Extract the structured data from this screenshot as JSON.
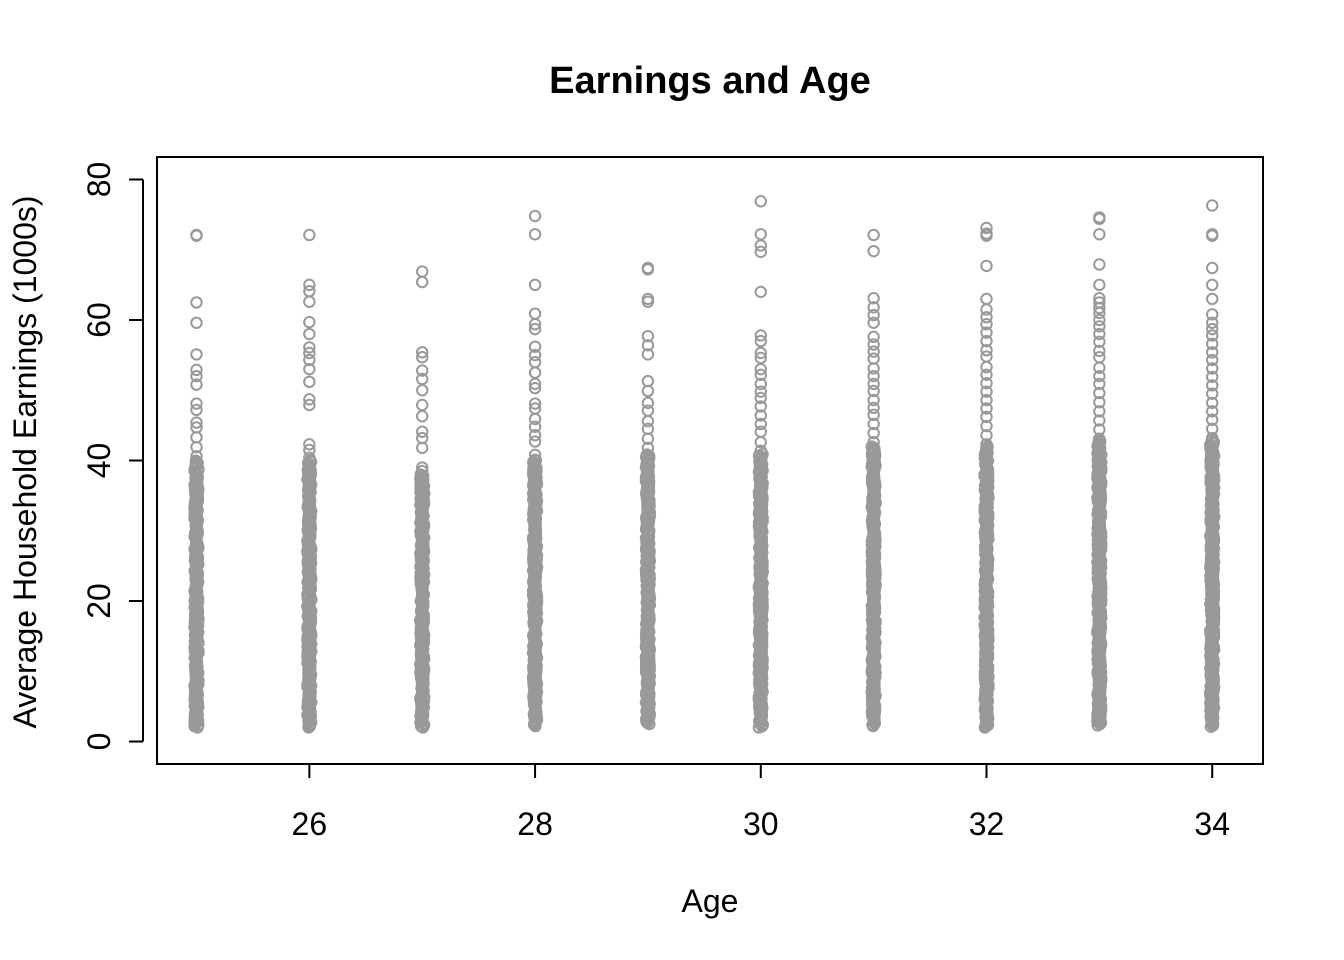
{
  "chart_data": {
    "type": "scatter",
    "title": "Earnings and Age",
    "xlabel": "Age",
    "ylabel": "Average Household Earnings (1000s)",
    "xlim": [
      24.65,
      34.45
    ],
    "ylim": [
      -3.2,
      83.2
    ],
    "x_ticks": [
      26,
      28,
      30,
      32,
      34
    ],
    "y_ticks": [
      0,
      20,
      40,
      60,
      80
    ],
    "point_color": "#999999",
    "grid": false,
    "legend": "none",
    "points": [
      {
        "x": 25,
        "y": 72.1
      },
      {
        "x": 25,
        "y": 72.0
      },
      {
        "x": 25,
        "y": 62.5
      },
      {
        "x": 25,
        "y": 59.6
      },
      {
        "x": 25,
        "y": 55.1
      },
      {
        "x": 25,
        "y": 52.9
      },
      {
        "x": 25,
        "y": 52.0
      },
      {
        "x": 25,
        "y": 50.8
      },
      {
        "x": 25,
        "y": 48.1
      },
      {
        "x": 25,
        "y": 47.2
      },
      {
        "x": 25,
        "y": 45.4
      },
      {
        "x": 25,
        "y": 44.7
      },
      {
        "x": 25,
        "y": 43.3
      },
      {
        "x": 25,
        "y": 41.9
      },
      {
        "x": 25,
        "y": 40.6
      },
      {
        "x": 26,
        "y": 72.1
      },
      {
        "x": 26,
        "y": 65.0
      },
      {
        "x": 26,
        "y": 64.1
      },
      {
        "x": 26,
        "y": 62.6
      },
      {
        "x": 26,
        "y": 59.7
      },
      {
        "x": 26,
        "y": 58.0
      },
      {
        "x": 26,
        "y": 56.1
      },
      {
        "x": 26,
        "y": 55.3
      },
      {
        "x": 26,
        "y": 54.3
      },
      {
        "x": 26,
        "y": 53.0
      },
      {
        "x": 26,
        "y": 51.2
      },
      {
        "x": 26,
        "y": 48.7
      },
      {
        "x": 26,
        "y": 47.9
      },
      {
        "x": 26,
        "y": 42.3
      },
      {
        "x": 26,
        "y": 41.5
      },
      {
        "x": 26,
        "y": 40.4
      },
      {
        "x": 27,
        "y": 66.9
      },
      {
        "x": 27,
        "y": 65.4
      },
      {
        "x": 27,
        "y": 55.4
      },
      {
        "x": 27,
        "y": 54.7
      },
      {
        "x": 27,
        "y": 52.8
      },
      {
        "x": 27,
        "y": 51.6
      },
      {
        "x": 27,
        "y": 50.0
      },
      {
        "x": 27,
        "y": 47.9
      },
      {
        "x": 27,
        "y": 46.3
      },
      {
        "x": 27,
        "y": 44.1
      },
      {
        "x": 27,
        "y": 43.2
      },
      {
        "x": 27,
        "y": 41.8
      },
      {
        "x": 27,
        "y": 39.0
      },
      {
        "x": 27,
        "y": 38.5
      },
      {
        "x": 28,
        "y": 74.8
      },
      {
        "x": 28,
        "y": 72.2
      },
      {
        "x": 28,
        "y": 65.0
      },
      {
        "x": 28,
        "y": 60.9
      },
      {
        "x": 28,
        "y": 59.4
      },
      {
        "x": 28,
        "y": 58.7
      },
      {
        "x": 28,
        "y": 56.2
      },
      {
        "x": 28,
        "y": 55.0
      },
      {
        "x": 28,
        "y": 54.0
      },
      {
        "x": 28,
        "y": 52.5
      },
      {
        "x": 28,
        "y": 50.9
      },
      {
        "x": 28,
        "y": 50.3
      },
      {
        "x": 28,
        "y": 48.1
      },
      {
        "x": 28,
        "y": 47.4
      },
      {
        "x": 28,
        "y": 45.9
      },
      {
        "x": 28,
        "y": 44.8
      },
      {
        "x": 28,
        "y": 43.6
      },
      {
        "x": 28,
        "y": 42.7
      },
      {
        "x": 28,
        "y": 40.8
      },
      {
        "x": 28,
        "y": 40.1
      },
      {
        "x": 29,
        "y": 67.4
      },
      {
        "x": 29,
        "y": 67.2
      },
      {
        "x": 29,
        "y": 63.0
      },
      {
        "x": 29,
        "y": 62.6
      },
      {
        "x": 29,
        "y": 57.7
      },
      {
        "x": 29,
        "y": 56.4
      },
      {
        "x": 29,
        "y": 55.1
      },
      {
        "x": 29,
        "y": 51.3
      },
      {
        "x": 29,
        "y": 49.9
      },
      {
        "x": 29,
        "y": 48.2
      },
      {
        "x": 29,
        "y": 47.1
      },
      {
        "x": 29,
        "y": 45.6
      },
      {
        "x": 29,
        "y": 44.5
      },
      {
        "x": 29,
        "y": 43.1
      },
      {
        "x": 29,
        "y": 41.8
      },
      {
        "x": 30,
        "y": 76.9
      },
      {
        "x": 30,
        "y": 72.2
      },
      {
        "x": 30,
        "y": 70.6
      },
      {
        "x": 30,
        "y": 69.7
      },
      {
        "x": 30,
        "y": 64.0
      },
      {
        "x": 30,
        "y": 57.8
      },
      {
        "x": 30,
        "y": 57.0
      },
      {
        "x": 30,
        "y": 55.3
      },
      {
        "x": 30,
        "y": 54.6
      },
      {
        "x": 30,
        "y": 53.0
      },
      {
        "x": 30,
        "y": 52.2
      },
      {
        "x": 30,
        "y": 50.9
      },
      {
        "x": 30,
        "y": 49.8
      },
      {
        "x": 30,
        "y": 48.9
      },
      {
        "x": 30,
        "y": 47.7
      },
      {
        "x": 30,
        "y": 46.4
      },
      {
        "x": 30,
        "y": 45.2
      },
      {
        "x": 30,
        "y": 44.1
      },
      {
        "x": 30,
        "y": 42.6
      },
      {
        "x": 30,
        "y": 41.4
      },
      {
        "x": 31,
        "y": 72.1
      },
      {
        "x": 31,
        "y": 69.8
      },
      {
        "x": 31,
        "y": 63.1
      },
      {
        "x": 31,
        "y": 61.8
      },
      {
        "x": 31,
        "y": 60.7
      },
      {
        "x": 31,
        "y": 59.6
      },
      {
        "x": 31,
        "y": 57.6
      },
      {
        "x": 31,
        "y": 56.5
      },
      {
        "x": 31,
        "y": 55.5
      },
      {
        "x": 31,
        "y": 54.5
      },
      {
        "x": 31,
        "y": 53.1
      },
      {
        "x": 31,
        "y": 52.0
      },
      {
        "x": 31,
        "y": 50.9
      },
      {
        "x": 31,
        "y": 49.9
      },
      {
        "x": 31,
        "y": 48.6
      },
      {
        "x": 31,
        "y": 47.5
      },
      {
        "x": 31,
        "y": 46.5
      },
      {
        "x": 31,
        "y": 45.2
      },
      {
        "x": 31,
        "y": 43.9
      },
      {
        "x": 31,
        "y": 42.6
      },
      {
        "x": 32,
        "y": 73.1
      },
      {
        "x": 32,
        "y": 72.3
      },
      {
        "x": 32,
        "y": 72.0
      },
      {
        "x": 32,
        "y": 67.7
      },
      {
        "x": 32,
        "y": 63.0
      },
      {
        "x": 32,
        "y": 61.5
      },
      {
        "x": 32,
        "y": 60.4
      },
      {
        "x": 32,
        "y": 59.4
      },
      {
        "x": 32,
        "y": 58.2
      },
      {
        "x": 32,
        "y": 57.0
      },
      {
        "x": 32,
        "y": 55.7
      },
      {
        "x": 32,
        "y": 54.8
      },
      {
        "x": 32,
        "y": 53.3
      },
      {
        "x": 32,
        "y": 52.2
      },
      {
        "x": 32,
        "y": 51.0
      },
      {
        "x": 32,
        "y": 49.8
      },
      {
        "x": 32,
        "y": 48.6
      },
      {
        "x": 32,
        "y": 47.4
      },
      {
        "x": 32,
        "y": 46.2
      },
      {
        "x": 32,
        "y": 44.9
      },
      {
        "x": 32,
        "y": 43.6
      },
      {
        "x": 32,
        "y": 42.3
      },
      {
        "x": 33,
        "y": 74.6
      },
      {
        "x": 33,
        "y": 74.4
      },
      {
        "x": 33,
        "y": 72.2
      },
      {
        "x": 33,
        "y": 67.9
      },
      {
        "x": 33,
        "y": 65.0
      },
      {
        "x": 33,
        "y": 63.1
      },
      {
        "x": 33,
        "y": 62.5
      },
      {
        "x": 33,
        "y": 61.7
      },
      {
        "x": 33,
        "y": 61.0
      },
      {
        "x": 33,
        "y": 60.0
      },
      {
        "x": 33,
        "y": 59.1
      },
      {
        "x": 33,
        "y": 58.0
      },
      {
        "x": 33,
        "y": 56.9
      },
      {
        "x": 33,
        "y": 55.6
      },
      {
        "x": 33,
        "y": 54.7
      },
      {
        "x": 33,
        "y": 53.2
      },
      {
        "x": 33,
        "y": 52.0
      },
      {
        "x": 33,
        "y": 50.9
      },
      {
        "x": 33,
        "y": 49.6
      },
      {
        "x": 33,
        "y": 48.3
      },
      {
        "x": 33,
        "y": 47.0
      },
      {
        "x": 33,
        "y": 45.7
      },
      {
        "x": 33,
        "y": 44.4
      },
      {
        "x": 33,
        "y": 43.1
      },
      {
        "x": 34,
        "y": 76.3
      },
      {
        "x": 34,
        "y": 72.2
      },
      {
        "x": 34,
        "y": 72.0
      },
      {
        "x": 34,
        "y": 67.4
      },
      {
        "x": 34,
        "y": 65.0
      },
      {
        "x": 34,
        "y": 63.0
      },
      {
        "x": 34,
        "y": 60.8
      },
      {
        "x": 34,
        "y": 59.6
      },
      {
        "x": 34,
        "y": 58.7
      },
      {
        "x": 34,
        "y": 57.8
      },
      {
        "x": 34,
        "y": 56.6
      },
      {
        "x": 34,
        "y": 55.4
      },
      {
        "x": 34,
        "y": 54.3
      },
      {
        "x": 34,
        "y": 53.1
      },
      {
        "x": 34,
        "y": 51.9
      },
      {
        "x": 34,
        "y": 50.7
      },
      {
        "x": 34,
        "y": 49.5
      },
      {
        "x": 34,
        "y": 48.2
      },
      {
        "x": 34,
        "y": 47.0
      },
      {
        "x": 34,
        "y": 45.8
      },
      {
        "x": 34,
        "y": 44.5
      },
      {
        "x": 34,
        "y": 43.2
      }
    ],
    "dense_ranges": [
      {
        "x": 25,
        "y_min": 2.0,
        "y_max": 40.0
      },
      {
        "x": 26,
        "y_min": 2.0,
        "y_max": 40.0
      },
      {
        "x": 27,
        "y_min": 2.0,
        "y_max": 38.0
      },
      {
        "x": 28,
        "y_min": 2.2,
        "y_max": 40.0
      },
      {
        "x": 29,
        "y_min": 2.5,
        "y_max": 41.0
      },
      {
        "x": 30,
        "y_min": 2.0,
        "y_max": 41.0
      },
      {
        "x": 31,
        "y_min": 2.2,
        "y_max": 42.0
      },
      {
        "x": 32,
        "y_min": 2.0,
        "y_max": 42.0
      },
      {
        "x": 33,
        "y_min": 2.3,
        "y_max": 43.0
      },
      {
        "x": 34,
        "y_min": 2.1,
        "y_max": 43.0
      }
    ]
  }
}
